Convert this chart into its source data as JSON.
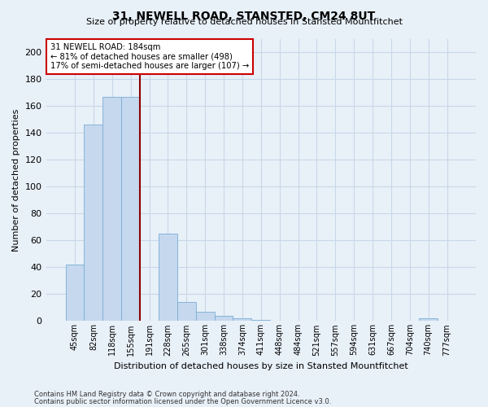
{
  "title": "31, NEWELL ROAD, STANSTED, CM24 8UT",
  "subtitle": "Size of property relative to detached houses in Stansted Mountfitchet",
  "xlabel": "Distribution of detached houses by size in Stansted Mountfitchet",
  "ylabel": "Number of detached properties",
  "footnote1": "Contains HM Land Registry data © Crown copyright and database right 2024.",
  "footnote2": "Contains public sector information licensed under the Open Government Licence v3.0.",
  "bar_labels": [
    "45sqm",
    "82sqm",
    "118sqm",
    "155sqm",
    "191sqm",
    "228sqm",
    "265sqm",
    "301sqm",
    "338sqm",
    "374sqm",
    "411sqm",
    "448sqm",
    "484sqm",
    "521sqm",
    "557sqm",
    "594sqm",
    "631sqm",
    "667sqm",
    "704sqm",
    "740sqm",
    "777sqm"
  ],
  "bar_values": [
    42,
    146,
    167,
    167,
    0,
    65,
    14,
    7,
    4,
    2,
    1,
    0,
    0,
    0,
    0,
    0,
    0,
    0,
    0,
    2,
    0
  ],
  "bar_color": "#c5d8ee",
  "bar_edge_color": "#7aadd4",
  "grid_color": "#c8d8e8",
  "background_color": "#e8f0f8",
  "property_label": "31 NEWELL ROAD: 184sqm",
  "annotation_line1": "← 81% of detached houses are smaller (498)",
  "annotation_line2": "17% of semi-detached houses are larger (107) →",
  "vline_color": "#8b0000",
  "vline_x_index": 4,
  "annotation_box_color": "#ffffff",
  "annotation_box_edge": "#cc0000",
  "ylim": [
    0,
    210
  ],
  "yticks": [
    0,
    20,
    40,
    60,
    80,
    100,
    120,
    140,
    160,
    180,
    200
  ]
}
